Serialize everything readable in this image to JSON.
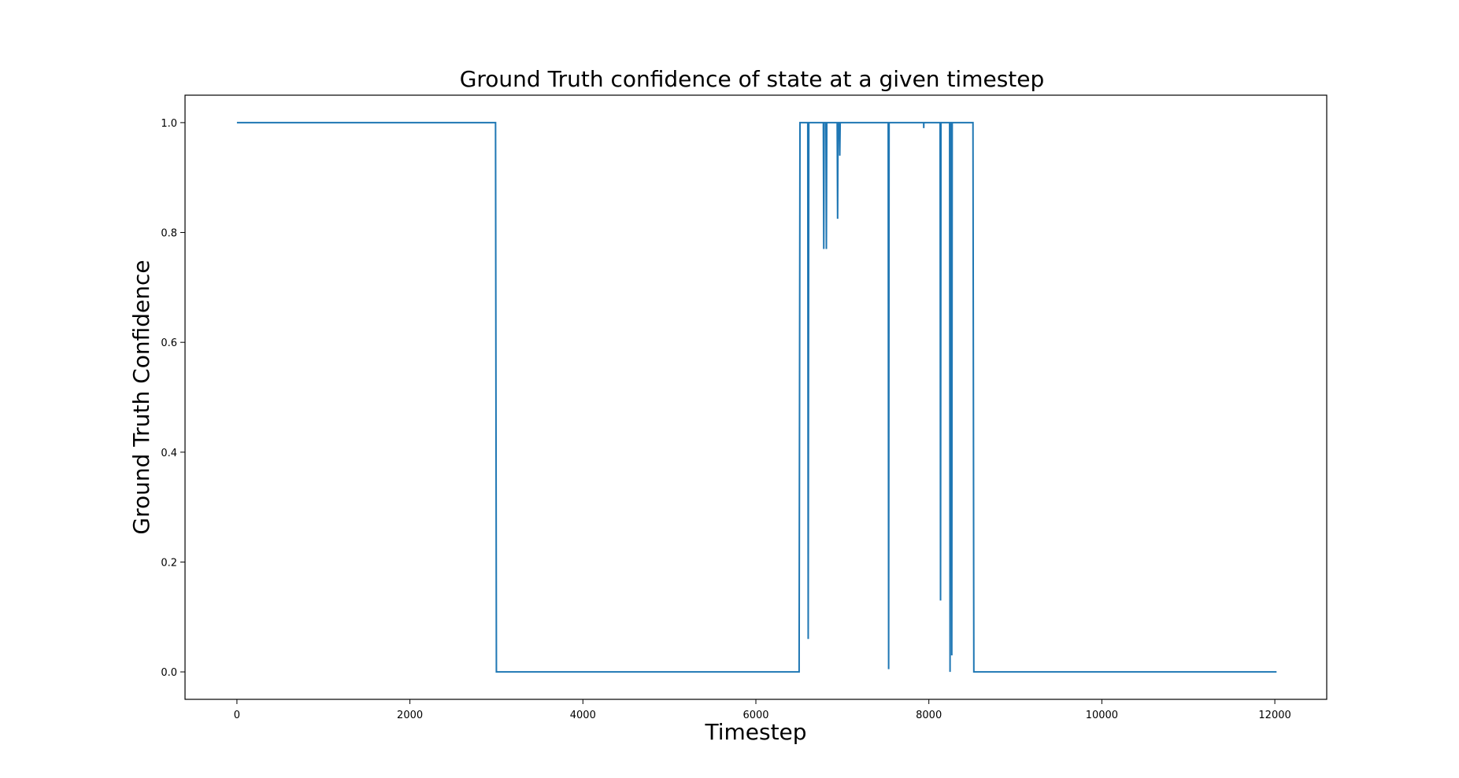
{
  "chart_data": {
    "type": "line",
    "title": "Ground Truth confidence of state at a given timestep",
    "xlabel": "Timestep",
    "ylabel": "Ground Truth Confidence",
    "xlim": [
      -600,
      12600
    ],
    "ylim": [
      -0.05,
      1.05
    ],
    "xticks": [
      0,
      2000,
      4000,
      6000,
      8000,
      10000,
      12000
    ],
    "xtick_labels": [
      "0",
      "2000",
      "4000",
      "6000",
      "8000",
      "10000",
      "12000"
    ],
    "yticks": [
      0.0,
      0.2,
      0.4,
      0.6,
      0.8,
      1.0
    ],
    "ytick_labels": [
      "0.0",
      "0.2",
      "0.4",
      "0.6",
      "0.8",
      "1.0"
    ],
    "grid": false,
    "series": [
      {
        "color": "#1f77b4",
        "x": [
          0,
          2990,
          3000,
          6500,
          6510,
          6600,
          6605,
          6612,
          6780,
          6785,
          6790,
          6810,
          6815,
          6820,
          6940,
          6945,
          6950,
          6965,
          6970,
          6975,
          7530,
          7535,
          7540,
          7940,
          7941,
          7942,
          8130,
          8135,
          8140,
          8240,
          8245,
          8250,
          8260,
          8265,
          8270,
          8510,
          8520,
          12020
        ],
        "y": [
          1.0,
          1.0,
          0.0,
          0.0,
          1.0,
          1.0,
          0.06,
          1.0,
          1.0,
          0.77,
          1.0,
          1.0,
          0.77,
          1.0,
          1.0,
          0.825,
          1.0,
          1.0,
          0.94,
          1.0,
          1.0,
          0.005,
          1.0,
          1.0,
          0.99,
          1.0,
          1.0,
          0.13,
          1.0,
          1.0,
          0.0,
          1.0,
          1.0,
          0.03,
          1.0,
          1.0,
          0.0,
          0.0
        ]
      }
    ]
  }
}
